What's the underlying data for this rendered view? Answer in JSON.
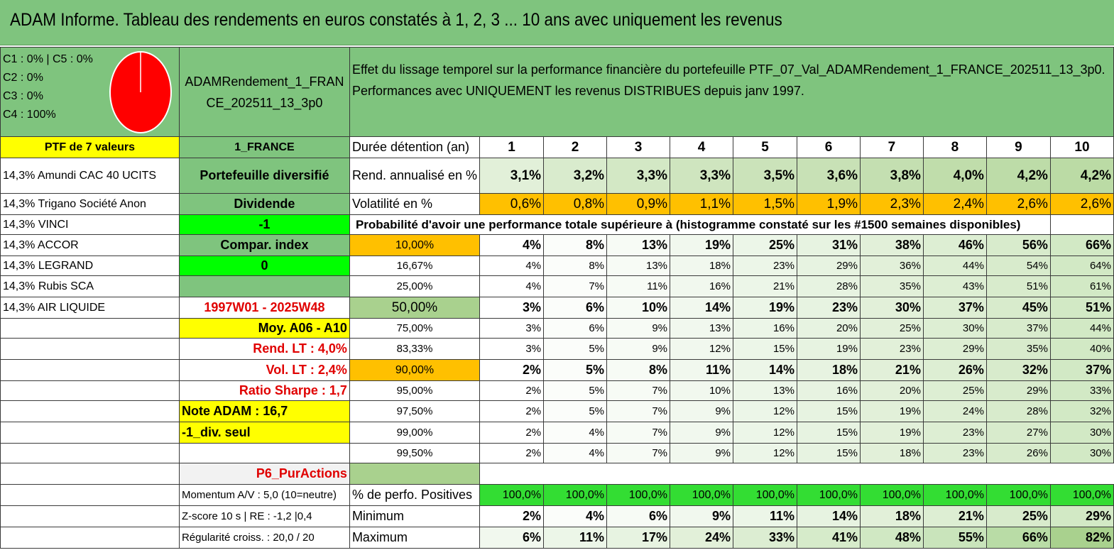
{
  "title": "ADAM Informe. Tableau des rendements en euros constatés à 1, 2, 3 ... 10 ans avec uniquement les revenus",
  "pie": {
    "lines": [
      "C1 : 0% | C5 : 0%",
      "C2 : 0%",
      "C3 : 0%",
      "C4 : 100%"
    ],
    "color": "#ff0000"
  },
  "portfolio_name": "ADAMRendement_1_FRANCE_202511_13_3p0",
  "description": "Effet du lissage temporel sur la performance financière du portefeuille PTF_07_Val_ADAMRendement_1_FRANCE_202511_13_3p0. Performances avec UNIQUEMENT les revenus DISTRIBUES depuis janv 1997.",
  "ptf_label": "PTF de 7 valeurs",
  "country": "1_FRANCE",
  "holdings": [
    "14,3% Amundi CAC 40 UCITS",
    "14,3% Trigano Société Anon",
    "14,3% VINCI",
    "14,3% ACCOR",
    "14,3% LEGRAND",
    "14,3% Rubis SCA",
    "14,3% AIR LIQUIDE"
  ],
  "info": {
    "diversifie": "Portefeuille diversifié",
    "dividende": "Dividende",
    "dividende_value": "-1",
    "compar": "Compar. index",
    "compar_value": "0",
    "period": "1997W01 - 2025W48",
    "moy": "Moy. A06 - A10",
    "rend_lt": "Rend. LT : 4,0%",
    "vol_lt": "Vol. LT : 2,4%",
    "sharpe": "Ratio Sharpe : 1,7",
    "note": "Note ADAM : 16,7",
    "div_seul": "-1_div. seul",
    "p6": "P6_PurActions",
    "momentum": "Momentum A/V : 5,0 (10=neutre)",
    "zscore": "Z-score 10 s | RE : -1,2 |0,4",
    "regularite": "Régularité croiss. : 20,0 / 20"
  },
  "table": {
    "duration_label": "Durée détention (an)",
    "years": [
      "1",
      "2",
      "3",
      "4",
      "5",
      "6",
      "7",
      "8",
      "9",
      "10"
    ],
    "rend_label": "Rend. annualisé en %",
    "rend": [
      "3,1%",
      "3,2%",
      "3,3%",
      "3,3%",
      "3,5%",
      "3,6%",
      "3,8%",
      "4,0%",
      "4,2%",
      "4,2%"
    ],
    "vol_label": "Volatilité en %",
    "vol": [
      "0,6%",
      "0,8%",
      "0,9%",
      "1,1%",
      "1,5%",
      "1,9%",
      "2,3%",
      "2,4%",
      "2,6%",
      "2,6%"
    ],
    "prob_title": "Probabilité d'avoir une performance totale supérieure à (histogramme constaté sur les #1500 semaines disponibles)",
    "prob_rows": [
      {
        "p": "10,00%",
        "v": [
          "4%",
          "8%",
          "13%",
          "19%",
          "25%",
          "31%",
          "38%",
          "46%",
          "56%",
          "66%"
        ]
      },
      {
        "p": "16,67%",
        "v": [
          "4%",
          "8%",
          "13%",
          "18%",
          "23%",
          "29%",
          "36%",
          "44%",
          "54%",
          "64%"
        ]
      },
      {
        "p": "25,00%",
        "v": [
          "4%",
          "7%",
          "11%",
          "16%",
          "21%",
          "28%",
          "35%",
          "43%",
          "51%",
          "61%"
        ]
      },
      {
        "p": "50,00%",
        "v": [
          "3%",
          "6%",
          "10%",
          "14%",
          "19%",
          "23%",
          "30%",
          "37%",
          "45%",
          "51%"
        ]
      },
      {
        "p": "75,00%",
        "v": [
          "3%",
          "6%",
          "9%",
          "13%",
          "16%",
          "20%",
          "25%",
          "30%",
          "37%",
          "44%"
        ]
      },
      {
        "p": "83,33%",
        "v": [
          "3%",
          "5%",
          "9%",
          "12%",
          "15%",
          "19%",
          "23%",
          "29%",
          "35%",
          "40%"
        ]
      },
      {
        "p": "90,00%",
        "v": [
          "2%",
          "5%",
          "8%",
          "11%",
          "14%",
          "18%",
          "21%",
          "26%",
          "32%",
          "37%"
        ]
      },
      {
        "p": "95,00%",
        "v": [
          "2%",
          "5%",
          "7%",
          "10%",
          "13%",
          "16%",
          "20%",
          "25%",
          "29%",
          "33%"
        ]
      },
      {
        "p": "97,50%",
        "v": [
          "2%",
          "5%",
          "7%",
          "9%",
          "12%",
          "15%",
          "19%",
          "24%",
          "28%",
          "32%"
        ]
      },
      {
        "p": "99,00%",
        "v": [
          "2%",
          "4%",
          "7%",
          "9%",
          "12%",
          "15%",
          "19%",
          "23%",
          "27%",
          "30%"
        ]
      },
      {
        "p": "99,50%",
        "v": [
          "2%",
          "4%",
          "7%",
          "9%",
          "12%",
          "15%",
          "18%",
          "23%",
          "26%",
          "30%"
        ]
      }
    ],
    "pos_label": "% de perfo. Positives",
    "pos": [
      "100,0%",
      "100,0%",
      "100,0%",
      "100,0%",
      "100,0%",
      "100,0%",
      "100,0%",
      "100,0%",
      "100,0%",
      "100,0%"
    ],
    "min_label": "Minimum",
    "min": [
      "2%",
      "4%",
      "6%",
      "9%",
      "11%",
      "14%",
      "18%",
      "21%",
      "25%",
      "29%"
    ],
    "max_label": "Maximum",
    "max": [
      "6%",
      "11%",
      "17%",
      "24%",
      "33%",
      "41%",
      "48%",
      "55%",
      "66%",
      "82%"
    ]
  }
}
